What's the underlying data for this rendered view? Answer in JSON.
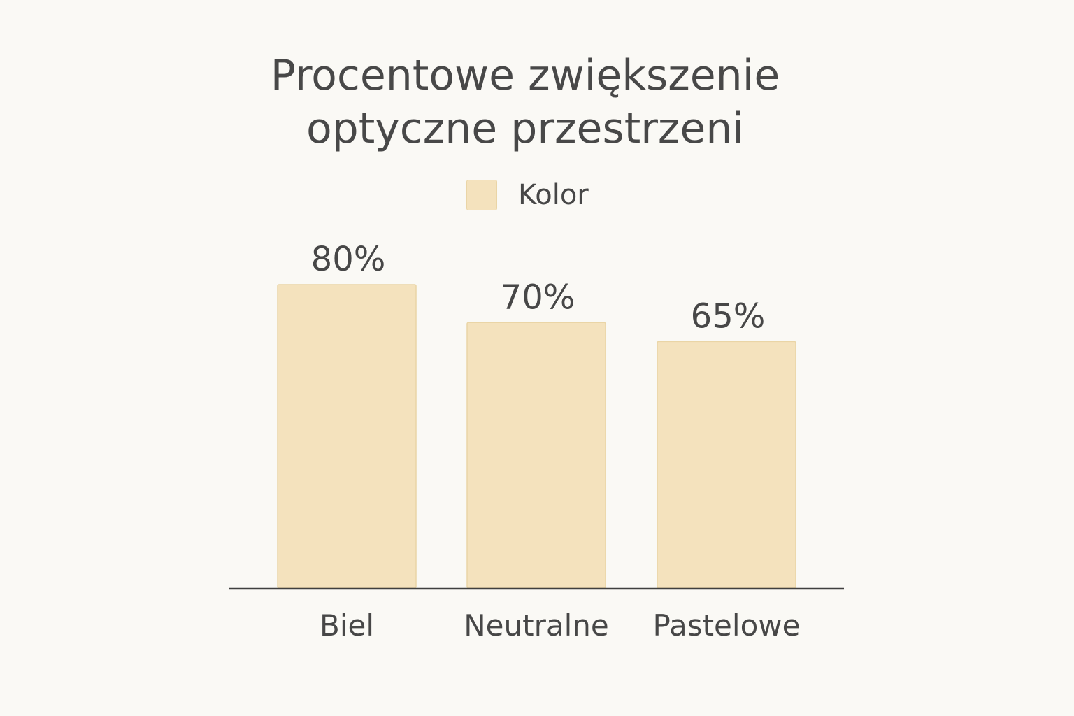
{
  "title_lines": [
    "Procentowe zwiększenie",
    "optyczne przestrzeni"
  ],
  "legend_label": "Kolor",
  "colors": {
    "bar": "#f4e2bd",
    "bar_border": "#ead5a6",
    "axis": "#3f3f3f",
    "text": "#474747",
    "background": "#faf9f5"
  },
  "chart_data": {
    "type": "bar",
    "title": "Procentowe zwiększenie optyczne przestrzeni",
    "categories": [
      "Biel",
      "Neutralne",
      "Pastelowe"
    ],
    "series": [
      {
        "name": "Kolor",
        "values": [
          80,
          70,
          65
        ]
      }
    ],
    "value_labels": [
      "80%",
      "70%",
      "65%"
    ],
    "xlabel": "",
    "ylabel": "",
    "ylim": [
      0,
      80
    ],
    "grid": false,
    "legend_position": "top-center"
  }
}
